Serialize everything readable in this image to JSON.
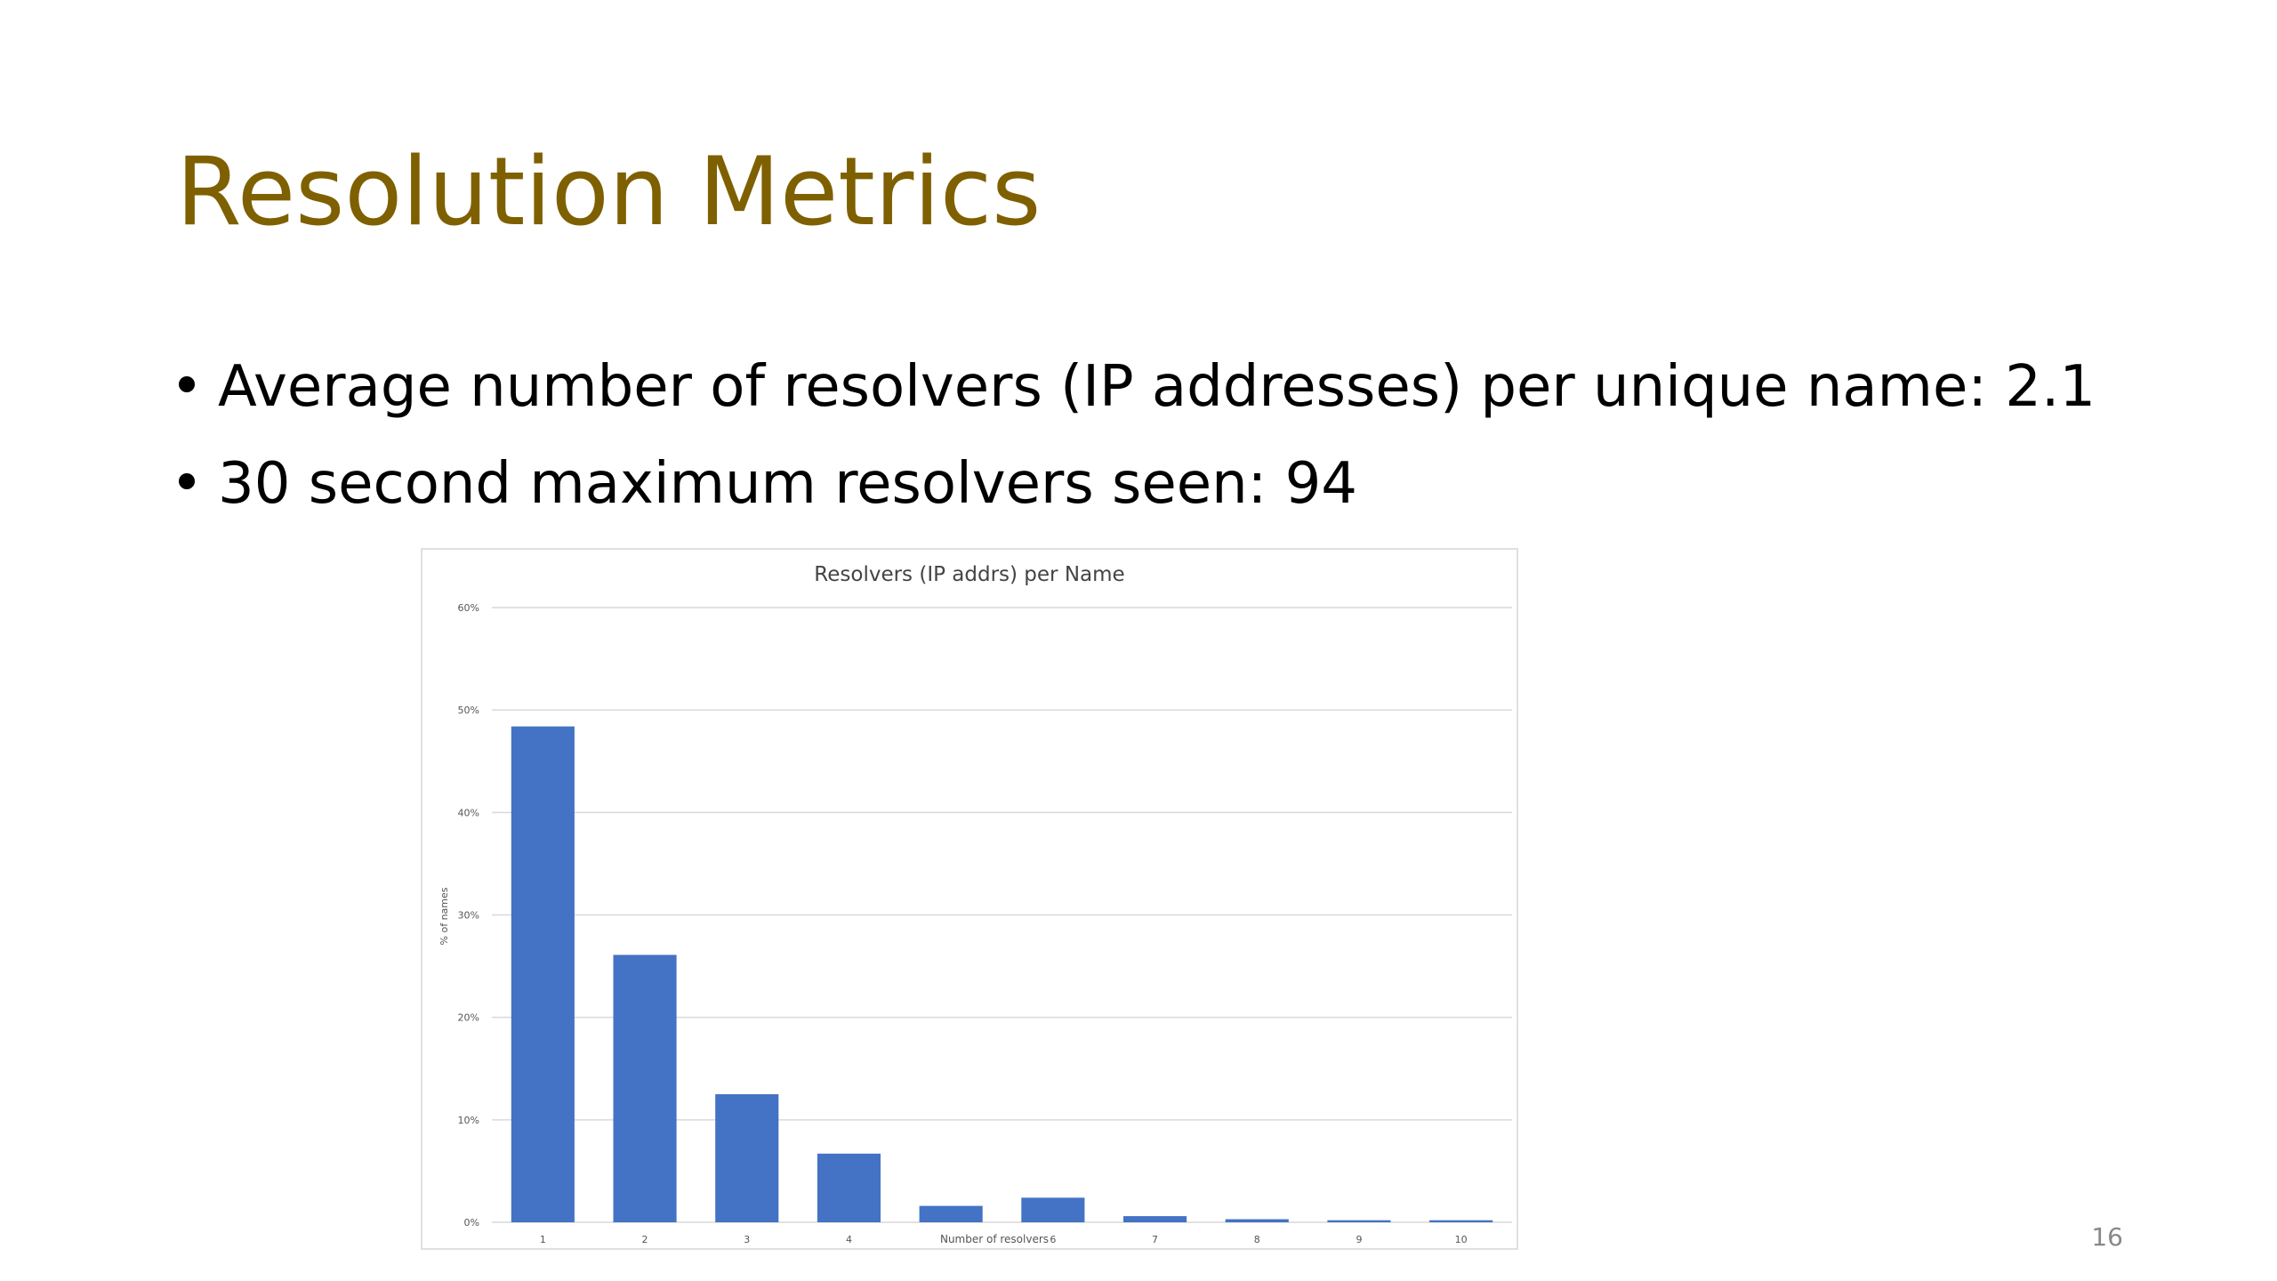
{
  "slide": {
    "title": "Resolution Metrics",
    "bullets": [
      "Average number of resolvers (IP addresses) per unique name: 2.1",
      "30 second maximum resolvers seen: 94"
    ],
    "page_number": "16"
  },
  "chart_data": {
    "type": "bar",
    "title": "Resolvers (IP addrs) per Name",
    "x_label": "Number of resolvers",
    "y_label": "% of names",
    "categories": [
      "1",
      "2",
      "3",
      "4",
      null,
      "6",
      "7",
      "8",
      "9",
      "10"
    ],
    "values": [
      48.4,
      26.1,
      12.5,
      6.7,
      1.6,
      2.4,
      0.6,
      0.3,
      0.2,
      0.2
    ],
    "color": "#4472c4",
    "ylim": [
      0,
      60
    ],
    "yticks": [
      {
        "value": 0,
        "label": "0%"
      },
      {
        "value": 10,
        "label": "10%"
      },
      {
        "value": 20,
        "label": "20%"
      },
      {
        "value": 30,
        "label": "30%"
      },
      {
        "value": 40,
        "label": "40%"
      },
      {
        "value": 50,
        "label": "50%"
      },
      {
        "value": 60,
        "label": "60%"
      }
    ],
    "grid": true
  }
}
